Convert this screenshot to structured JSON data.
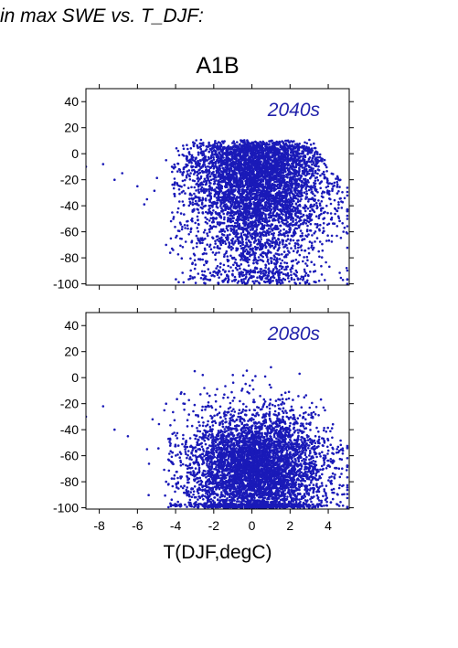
{
  "header": {
    "text": "in max SWE vs. T_DJF:"
  },
  "scenario": {
    "label": "A1B"
  },
  "colors": {
    "points": "#1a1ab8",
    "panel_label": "#2222aa",
    "axes": "#000000"
  },
  "chart_data": [
    {
      "type": "scatter",
      "panel_label": "2040s",
      "title": "",
      "xlabel": "T(DJF,degC)",
      "ylabel": "",
      "xlim": [
        -8.7,
        5.1
      ],
      "ylim": [
        -101,
        50
      ],
      "xticks": [
        -8,
        -6,
        -4,
        -2,
        0,
        2,
        4
      ],
      "yticks": [
        -100,
        -80,
        -60,
        -40,
        -20,
        0,
        20,
        40
      ],
      "grid": false,
      "legend": "none",
      "description_of_cloud": "dense cloud of points; upper edge near 0 to +10 for T between -4 and 3.3; lower edge near -100; sparse tail to the left reaching T about -8.7 at y about -20",
      "point_envelope": {
        "x_range": [
          -8.7,
          5.0
        ],
        "y_range": [
          -100,
          12
        ],
        "sample_points": [
          {
            "x": -8.7,
            "y": -10
          },
          {
            "x": -7.8,
            "y": -8
          },
          {
            "x": -7.2,
            "y": -20
          },
          {
            "x": -6.8,
            "y": -15
          },
          {
            "x": -6.0,
            "y": -25
          },
          {
            "x": -5.5,
            "y": -35
          },
          {
            "x": -4.5,
            "y": -5
          },
          {
            "x": -4.5,
            "y": -70
          },
          {
            "x": -3.0,
            "y": 8
          },
          {
            "x": -3.0,
            "y": -78
          },
          {
            "x": -1.0,
            "y": 5
          },
          {
            "x": -1.0,
            "y": -90
          },
          {
            "x": 1.0,
            "y": 10
          },
          {
            "x": 1.0,
            "y": -98
          },
          {
            "x": 3.0,
            "y": 4
          },
          {
            "x": 3.0,
            "y": -100
          },
          {
            "x": 4.0,
            "y": -30
          },
          {
            "x": 4.8,
            "y": -60
          },
          {
            "x": 5.0,
            "y": -100
          }
        ]
      }
    },
    {
      "type": "scatter",
      "panel_label": "2080s",
      "title": "",
      "xlabel": "T(DJF,degC)",
      "ylabel": "",
      "xlim": [
        -8.7,
        5.1
      ],
      "ylim": [
        -101,
        50
      ],
      "xticks": [
        -8,
        -6,
        -4,
        -2,
        0,
        2,
        4
      ],
      "yticks": [
        -100,
        -80,
        -60,
        -40,
        -20,
        0,
        20,
        40
      ],
      "grid": false,
      "legend": "none",
      "description_of_cloud": "dense cloud concentrated lower than 2040s; upper edge near +5 for T between -4 and 2.5; most points between -40 and -100; sparse tail to the left reaching T about -8.7 at y about -30",
      "point_envelope": {
        "x_range": [
          -8.7,
          5.0
        ],
        "y_range": [
          -100,
          10
        ],
        "sample_points": [
          {
            "x": -8.7,
            "y": -30
          },
          {
            "x": -7.8,
            "y": -22
          },
          {
            "x": -7.2,
            "y": -40
          },
          {
            "x": -6.5,
            "y": -45
          },
          {
            "x": -5.5,
            "y": -55
          },
          {
            "x": -4.5,
            "y": -20
          },
          {
            "x": -4.5,
            "y": -80
          },
          {
            "x": -3.0,
            "y": 5
          },
          {
            "x": -3.0,
            "y": -92
          },
          {
            "x": -1.0,
            "y": 2
          },
          {
            "x": -1.0,
            "y": -98
          },
          {
            "x": 1.0,
            "y": 8
          },
          {
            "x": 1.0,
            "y": -100
          },
          {
            "x": 2.5,
            "y": 3
          },
          {
            "x": 3.0,
            "y": -100
          },
          {
            "x": 3.8,
            "y": -50
          },
          {
            "x": 4.5,
            "y": -90
          },
          {
            "x": 5.0,
            "y": -100
          }
        ]
      }
    }
  ]
}
